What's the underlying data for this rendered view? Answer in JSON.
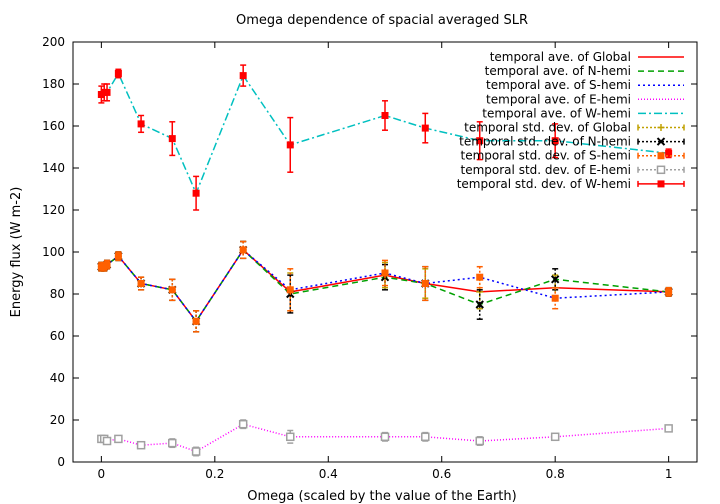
{
  "chart_data": {
    "type": "line",
    "title": "Omega dependence of spacial averaged SLR",
    "xlabel": "Omega (scaled by the value of the Earth)",
    "ylabel": "Energy flux (W m-2)",
    "xlim": [
      -0.05,
      1.05
    ],
    "ylim": [
      0,
      200
    ],
    "xticks": [
      0,
      0.2,
      0.4,
      0.6,
      0.8,
      1
    ],
    "yticks": [
      0,
      20,
      40,
      60,
      80,
      100,
      120,
      140,
      160,
      180,
      200
    ],
    "xtick_labels": [
      "0",
      "0.2",
      "0.4",
      "0.6",
      "0.8",
      "1"
    ],
    "ytick_labels": [
      "0",
      "20",
      "40",
      "60",
      "80",
      "100",
      "120",
      "140",
      "160",
      "180",
      "200"
    ],
    "grid": false,
    "legend_position": "top-right",
    "x": [
      0,
      0.005,
      0.01,
      0.03,
      0.07,
      0.125,
      0.167,
      0.25,
      0.333,
      0.5,
      0.571,
      0.667,
      0.8,
      1.0
    ],
    "series": [
      {
        "name": "temporal ave. of Global",
        "color": "#ff0000",
        "dash": "solid",
        "values": [
          93,
          93,
          94,
          98,
          85,
          82,
          67,
          101,
          81,
          89,
          85,
          81,
          83,
          81
        ]
      },
      {
        "name": "temporal ave. of N-hemi",
        "color": "#00a000",
        "dash": "dashed",
        "values": [
          93,
          93,
          94,
          98,
          85,
          82,
          67,
          101,
          80,
          88,
          85,
          75,
          87,
          81
        ]
      },
      {
        "name": "temporal ave. of S-hemi",
        "color": "#0000ff",
        "dash": "dotted",
        "values": [
          93,
          93,
          94,
          98,
          85,
          82,
          67,
          101,
          82,
          90,
          85,
          88,
          78,
          81
        ]
      },
      {
        "name": "temporal ave. of E-hemi",
        "color": "#ff00ff",
        "dash": "fine-dotted",
        "values": [
          11,
          11,
          10,
          11,
          8,
          9,
          5,
          18,
          12,
          12,
          12,
          10,
          12,
          16
        ]
      },
      {
        "name": "temporal ave. of W-hemi",
        "color": "#00c0c0",
        "dash": "dash-dot",
        "values": [
          175,
          176,
          176,
          185,
          161,
          154,
          128,
          184,
          151,
          165,
          159,
          153,
          153,
          147
        ]
      },
      {
        "name": "temporal std. dev. of Global",
        "color": "#c0a000",
        "marker": "plus",
        "errorbars": true,
        "values": [
          93,
          93,
          94,
          98,
          85,
          82,
          67,
          101,
          81,
          89,
          85,
          81,
          83,
          81
        ],
        "errors": [
          2,
          2,
          2,
          2,
          3,
          5,
          5,
          4,
          9,
          6,
          7,
          8,
          6,
          2
        ]
      },
      {
        "name": "temporal std. dev. of N-hemi",
        "color": "#000000",
        "marker": "cross",
        "errorbars": true,
        "values": [
          93,
          93,
          94,
          98,
          85,
          82,
          67,
          101,
          80,
          88,
          85,
          75,
          87,
          81
        ],
        "errors": [
          2,
          2,
          2,
          2,
          3,
          5,
          5,
          4,
          9,
          6,
          8,
          7,
          5,
          2
        ]
      },
      {
        "name": "temporal std. dev. of S-hemi",
        "color": "#ff6000",
        "marker": "filled-square",
        "errorbars": true,
        "values": [
          93,
          93,
          94,
          98,
          85,
          82,
          67,
          101,
          82,
          90,
          85,
          88,
          78,
          81
        ],
        "errors": [
          2,
          2,
          2,
          2,
          3,
          5,
          5,
          4,
          10,
          6,
          8,
          5,
          5,
          2
        ]
      },
      {
        "name": "temporal std. dev. of E-hemi",
        "color": "#a0a0a0",
        "marker": "open-square",
        "errorbars": true,
        "values": [
          11,
          11,
          10,
          11,
          8,
          9,
          5,
          18,
          12,
          12,
          12,
          10,
          12,
          16
        ],
        "errors": [
          1,
          1,
          1,
          1,
          1,
          2,
          2,
          2,
          3,
          2,
          2,
          2,
          1,
          1
        ]
      },
      {
        "name": "temporal std. dev. of W-hemi",
        "color": "#ff0000",
        "marker": "filled-square",
        "errorbars": true,
        "values": [
          175,
          176,
          176,
          185,
          161,
          154,
          128,
          184,
          151,
          165,
          159,
          153,
          153,
          147
        ],
        "errors": [
          4,
          4,
          4,
          2,
          4,
          8,
          8,
          5,
          13,
          7,
          7,
          9,
          8,
          2
        ]
      }
    ]
  }
}
